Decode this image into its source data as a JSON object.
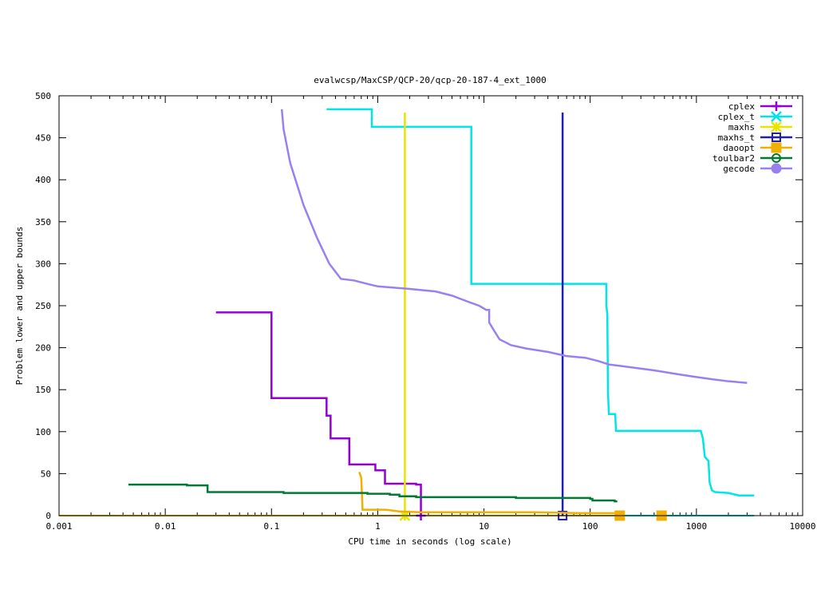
{
  "chart_data": {
    "type": "line",
    "title": "evalwcsp/MaxCSP/QCP-20/qcp-20-187-4_ext_1000",
    "xlabel": "CPU time in seconds (log scale)",
    "ylabel": "Problem lower and upper bounds",
    "xscale": "log",
    "xlim": [
      0.001,
      10000
    ],
    "ylim": [
      0,
      500
    ],
    "xticks": [
      {
        "v": 0.001,
        "label": "0.001"
      },
      {
        "v": 0.01,
        "label": "0.01"
      },
      {
        "v": 0.1,
        "label": "0.1"
      },
      {
        "v": 1,
        "label": "1"
      },
      {
        "v": 10,
        "label": "10"
      },
      {
        "v": 100,
        "label": "100"
      },
      {
        "v": 1000,
        "label": "1000"
      },
      {
        "v": 10000,
        "label": "10000"
      }
    ],
    "yticks": [
      {
        "v": 0,
        "label": "0"
      },
      {
        "v": 50,
        "label": "50"
      },
      {
        "v": 100,
        "label": "100"
      },
      {
        "v": 150,
        "label": "150"
      },
      {
        "v": 200,
        "label": "200"
      },
      {
        "v": 250,
        "label": "250"
      },
      {
        "v": 300,
        "label": "300"
      },
      {
        "v": 350,
        "label": "350"
      },
      {
        "v": 400,
        "label": "400"
      },
      {
        "v": 450,
        "label": "450"
      },
      {
        "v": 500,
        "label": "500"
      }
    ],
    "grid": false,
    "legend_position": "top-right",
    "series": [
      {
        "name": "cplex",
        "color": "#9400d3",
        "marker": "plus",
        "points": [
          [
            0.03,
            242
          ],
          [
            0.1,
            242
          ],
          [
            0.1,
            140
          ],
          [
            0.33,
            140
          ],
          [
            0.33,
            119
          ],
          [
            0.36,
            119
          ],
          [
            0.36,
            92
          ],
          [
            0.54,
            92
          ],
          [
            0.54,
            61
          ],
          [
            0.95,
            61
          ],
          [
            0.95,
            54
          ],
          [
            1.17,
            54
          ],
          [
            1.17,
            38
          ],
          [
            2.3,
            38
          ],
          [
            2.3,
            37
          ],
          [
            2.55,
            37
          ],
          [
            2.55,
            0
          ]
        ],
        "markers": [
          [
            2.55,
            0
          ]
        ]
      },
      {
        "name": "cplex_t",
        "color": "#00e5e5",
        "marker": "x",
        "points": [
          [
            0.33,
            484
          ],
          [
            0.88,
            484
          ],
          [
            0.88,
            463
          ],
          [
            7.6,
            463
          ],
          [
            7.6,
            276
          ],
          [
            142,
            276
          ],
          [
            142,
            250
          ],
          [
            145,
            240
          ],
          [
            147,
            148
          ],
          [
            150,
            121
          ],
          [
            172,
            121
          ],
          [
            175,
            101
          ],
          [
            1100,
            101
          ],
          [
            1150,
            92
          ],
          [
            1200,
            70
          ],
          [
            1300,
            65
          ],
          [
            1330,
            40
          ],
          [
            1400,
            30
          ],
          [
            1500,
            28
          ],
          [
            2000,
            27
          ],
          [
            2500,
            24
          ],
          [
            3500,
            24
          ]
        ],
        "markers": []
      },
      {
        "name": "maxhs",
        "color": "#e5e500",
        "marker": "star",
        "points": [
          [
            1.8,
            480
          ],
          [
            1.8,
            0
          ]
        ],
        "markers": [
          [
            1.8,
            0
          ]
        ]
      },
      {
        "name": "maxhs_t",
        "color": "#1f1fb4",
        "marker": "square",
        "points": [
          [
            55,
            480
          ],
          [
            55,
            0
          ]
        ],
        "markers": [
          [
            55,
            0
          ]
        ]
      },
      {
        "name": "daoopt",
        "color": "#f0b000",
        "marker": "filled-square",
        "points": [
          [
            0.67,
            52
          ],
          [
            0.7,
            45
          ],
          [
            0.72,
            7
          ],
          [
            1.2,
            7
          ],
          [
            1.6,
            5
          ],
          [
            2.5,
            4
          ],
          [
            10,
            4
          ],
          [
            30,
            4
          ],
          [
            80,
            3
          ],
          [
            190,
            3
          ]
        ],
        "markers": [
          [
            190,
            0
          ],
          [
            470,
            0
          ]
        ]
      },
      {
        "name": "toulbar2",
        "color": "#007a33",
        "marker": "circle",
        "points": [
          [
            0.0045,
            37
          ],
          [
            0.016,
            37
          ],
          [
            0.016,
            36
          ],
          [
            0.025,
            36
          ],
          [
            0.025,
            28
          ],
          [
            0.13,
            28
          ],
          [
            0.13,
            27
          ],
          [
            0.8,
            27
          ],
          [
            0.8,
            26
          ],
          [
            1.3,
            26
          ],
          [
            1.3,
            25
          ],
          [
            1.6,
            25
          ],
          [
            1.6,
            23
          ],
          [
            2.3,
            23
          ],
          [
            2.3,
            22
          ],
          [
            20,
            22
          ],
          [
            20,
            21
          ],
          [
            100,
            21
          ],
          [
            100,
            20
          ],
          [
            105,
            20
          ],
          [
            105,
            18
          ],
          [
            170,
            18
          ],
          [
            170,
            17
          ],
          [
            180,
            17
          ]
        ],
        "markers": []
      },
      {
        "name": "gecode",
        "color": "#9a7ff0",
        "marker": "filled-circle",
        "points": [
          [
            0.125,
            484
          ],
          [
            0.13,
            460
          ],
          [
            0.15,
            420
          ],
          [
            0.2,
            370
          ],
          [
            0.27,
            330
          ],
          [
            0.35,
            300
          ],
          [
            0.45,
            282
          ],
          [
            0.6,
            280
          ],
          [
            0.8,
            276
          ],
          [
            1.0,
            273
          ],
          [
            2.0,
            270
          ],
          [
            3.5,
            267
          ],
          [
            5.0,
            262
          ],
          [
            7.0,
            255
          ],
          [
            9.0,
            250
          ],
          [
            10.5,
            245
          ],
          [
            11.2,
            245
          ],
          [
            11.2,
            230
          ],
          [
            12.5,
            220
          ],
          [
            14,
            210
          ],
          [
            18,
            203
          ],
          [
            25,
            199
          ],
          [
            40,
            195
          ],
          [
            60,
            190
          ],
          [
            90,
            188
          ],
          [
            120,
            184
          ],
          [
            150,
            180
          ],
          [
            200,
            178
          ],
          [
            400,
            173
          ],
          [
            700,
            168
          ],
          [
            1000,
            165
          ],
          [
            1500,
            162
          ],
          [
            2000,
            160
          ],
          [
            3000,
            158
          ]
        ],
        "markers": []
      }
    ]
  }
}
